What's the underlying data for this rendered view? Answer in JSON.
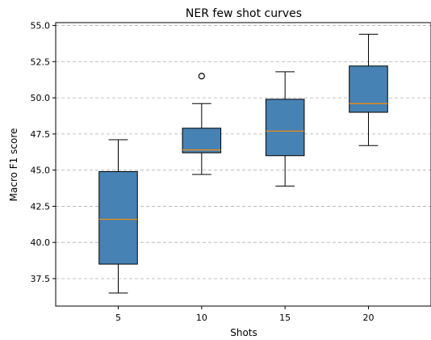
{
  "chart_data": {
    "type": "box",
    "title": "NER few shot curves",
    "xlabel": "Shots",
    "ylabel": "Macro F1 score",
    "categories": [
      "5",
      "10",
      "15",
      "20"
    ],
    "ylim": [
      35.6,
      55.2
    ],
    "yticks": [
      "37.5",
      "40.0",
      "42.5",
      "45.0",
      "47.5",
      "50.0",
      "52.5",
      "55.0"
    ],
    "grid": "horizontal dashed",
    "boxes": [
      {
        "category": "5",
        "whisker_low": 36.5,
        "q1": 38.5,
        "median": 41.6,
        "q3": 44.9,
        "whisker_high": 47.1,
        "outliers": []
      },
      {
        "category": "10",
        "whisker_low": 44.7,
        "q1": 46.2,
        "median": 46.4,
        "q3": 47.9,
        "whisker_high": 49.6,
        "outliers": [
          51.5
        ]
      },
      {
        "category": "15",
        "whisker_low": 43.9,
        "q1": 46.0,
        "median": 47.7,
        "q3": 49.9,
        "whisker_high": 51.8,
        "outliers": []
      },
      {
        "category": "20",
        "whisker_low": 46.7,
        "q1": 49.0,
        "median": 49.6,
        "q3": 52.2,
        "whisker_high": 54.4,
        "outliers": []
      }
    ],
    "colors": {
      "box_fill": "#4682b4",
      "median_line": "#ff8c00",
      "grid": "#b0b0b0"
    }
  }
}
